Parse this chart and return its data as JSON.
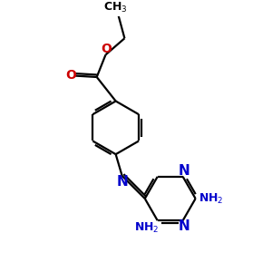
{
  "bg_color": "#ffffff",
  "bond_color": "#000000",
  "nitrogen_color": "#0000cc",
  "oxygen_color": "#cc0000",
  "line_width": 1.6,
  "figsize": [
    3.0,
    3.0
  ],
  "dpi": 100,
  "xlim": [
    0,
    10
  ],
  "ylim": [
    0,
    10
  ]
}
